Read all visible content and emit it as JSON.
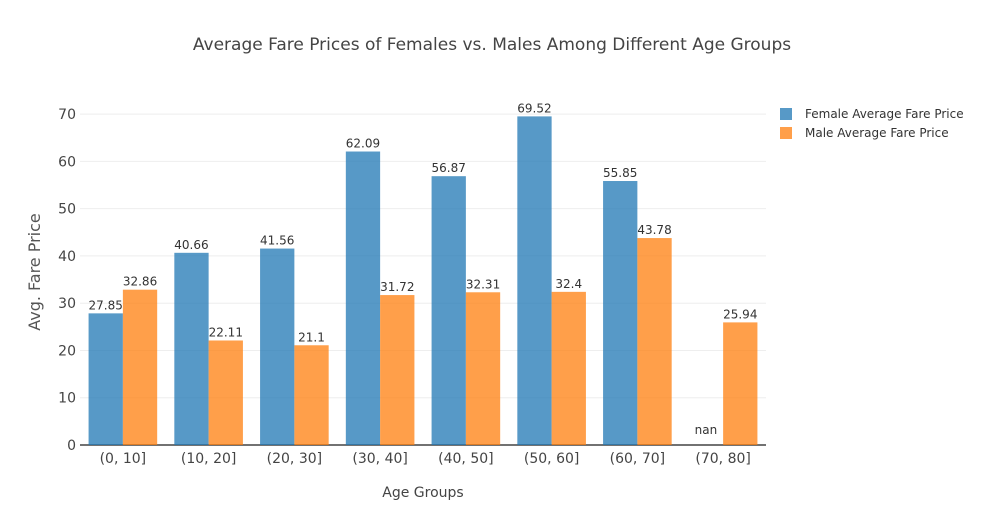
{
  "chart_data": {
    "type": "bar",
    "title": "Average Fare Prices of Females vs. Males Among Different Age Groups",
    "xlabel": "Age Groups",
    "ylabel": "Avg. Fare Price",
    "categories": [
      "(0, 10]",
      "(10, 20]",
      "(20, 30]",
      "(30, 40]",
      "(40, 50]",
      "(50, 60]",
      "(60, 70]",
      "(70, 80]"
    ],
    "series": [
      {
        "name": "Female Average Fare Price",
        "values": [
          27.85,
          40.66,
          41.56,
          62.09,
          56.87,
          69.52,
          55.85,
          null
        ],
        "labels": [
          "27.85",
          "40.66",
          "41.56",
          "62.09",
          "56.87",
          "69.52",
          "55.85",
          "nan"
        ],
        "color": "#1f77b4"
      },
      {
        "name": "Male Average Fare Price",
        "values": [
          32.86,
          22.11,
          21.1,
          31.72,
          32.31,
          32.4,
          43.78,
          25.94
        ],
        "labels": [
          "32.86",
          "22.11",
          "21.1",
          "31.72",
          "32.31",
          "32.4",
          "43.78",
          "25.94"
        ],
        "color": "#ff7f0e"
      }
    ],
    "yticks": [
      0,
      10,
      20,
      30,
      40,
      50,
      60,
      70
    ],
    "ylim": [
      0,
      73.2
    ],
    "grid": true,
    "legend_position": "top-right",
    "barmode": "group"
  }
}
